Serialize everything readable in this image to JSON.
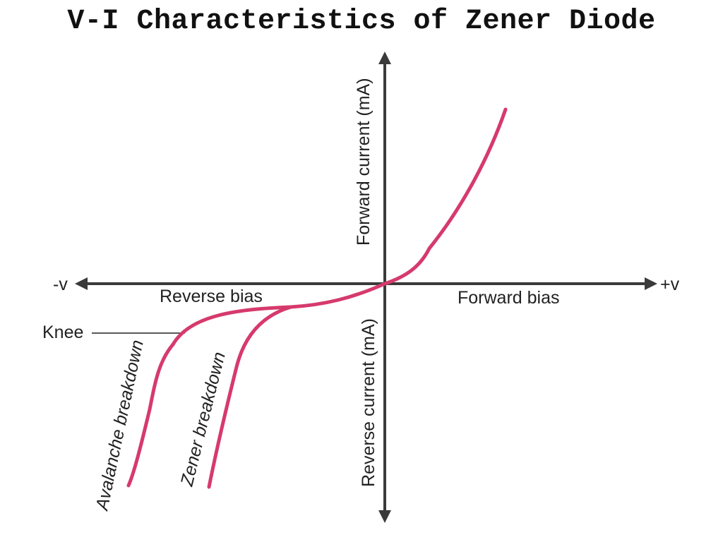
{
  "title": "V-I Characteristics of Zener Diode",
  "axes": {
    "positive_x": "+v",
    "negative_x": "-v",
    "positive_y": "Forward current (mA)",
    "negative_y": "Reverse current  (mA)"
  },
  "regions": {
    "forward": "Forward bias",
    "reverse": "Reverse bias"
  },
  "annotations": {
    "knee": "Knee",
    "avalanche": "Avalanche breakdown",
    "zener": "Zener breakdown"
  },
  "colors": {
    "curve": "#d63a6d",
    "axis": "#3a3a3a"
  }
}
